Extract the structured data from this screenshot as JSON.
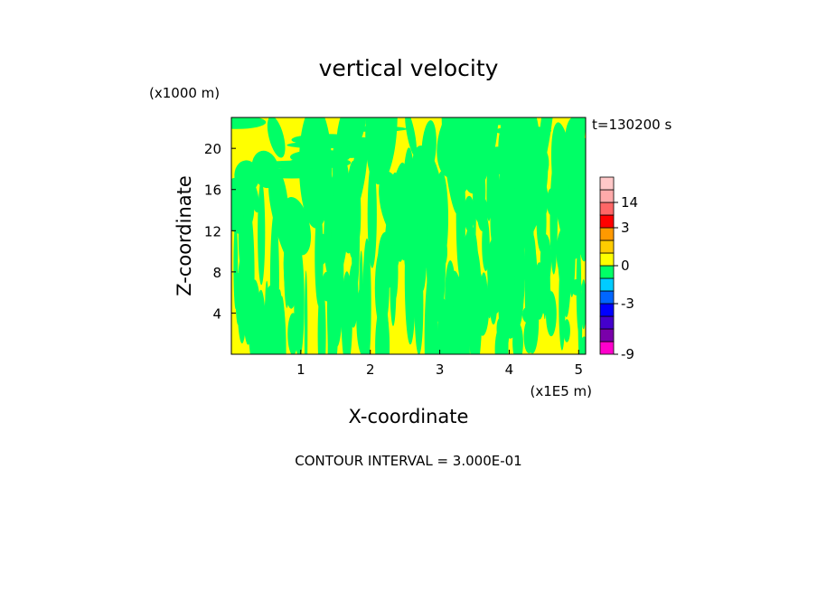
{
  "chart_data": {
    "type": "heatmap",
    "title": "vertical velocity",
    "xlabel": "X-coordinate",
    "ylabel": "Z-coordinate",
    "x_unit": "(x1E5 m)",
    "y_unit": "(x1000 m)",
    "xlim": [
      0,
      5.1
    ],
    "ylim": [
      0,
      23
    ],
    "x_ticks": [
      1,
      2,
      3,
      4,
      5
    ],
    "y_ticks": [
      4,
      8,
      12,
      16,
      20
    ],
    "timestamp": "t=130200 s",
    "contour_interval_text": "CONTOUR INTERVAL = 3.000E-01",
    "field_colors": {
      "positive_small": "#ffff00",
      "negative_small": "#00ff66"
    },
    "colorbar": {
      "range": [
        -9,
        20
      ],
      "tick_labels": [
        "14",
        "3",
        "0",
        "-3",
        "-9"
      ],
      "tick_values": [
        14,
        3,
        0,
        -3,
        -9
      ],
      "bins": [
        {
          "from": -9,
          "to": -7.5,
          "color": "#ff00cc"
        },
        {
          "from": -7.5,
          "to": -6,
          "color": "#7a00aa"
        },
        {
          "from": -6,
          "to": -4.5,
          "color": "#4400cc"
        },
        {
          "from": -4.5,
          "to": -3,
          "color": "#0000ff"
        },
        {
          "from": -3,
          "to": -2,
          "color": "#0066ff"
        },
        {
          "from": -2,
          "to": -1,
          "color": "#00ccff"
        },
        {
          "from": -1,
          "to": 0,
          "color": "#00ff66"
        },
        {
          "from": 0,
          "to": 1,
          "color": "#ffff00"
        },
        {
          "from": 1,
          "to": 2,
          "color": "#ffcc00"
        },
        {
          "from": 2,
          "to": 3,
          "color": "#ff9900"
        },
        {
          "from": 3,
          "to": 6,
          "color": "#ff0000"
        },
        {
          "from": 6,
          "to": 14,
          "color": "#ff6666"
        },
        {
          "from": 14,
          "to": 17,
          "color": "#ffaaaa"
        },
        {
          "from": 17,
          "to": 20,
          "color": "#ffc8c8"
        }
      ]
    }
  }
}
